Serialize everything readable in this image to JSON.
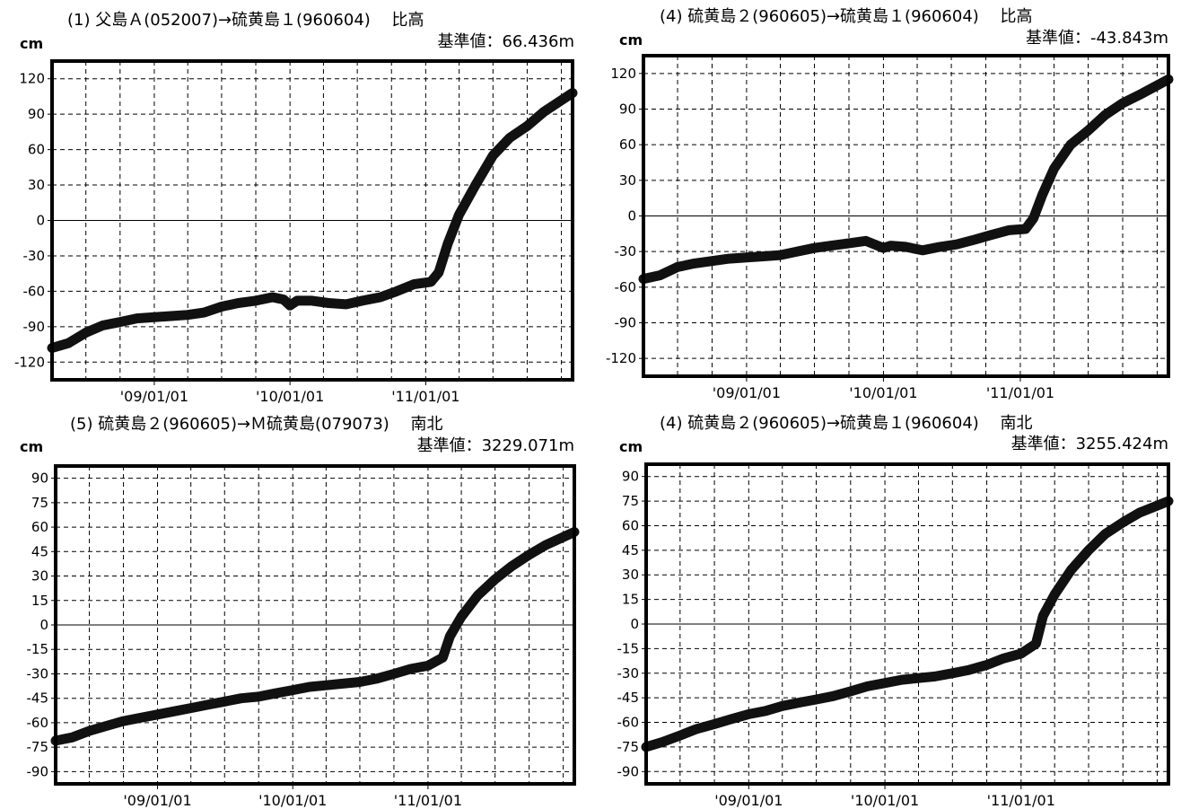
{
  "chart_data": [
    {
      "type": "line",
      "title": "(1) 父島Ａ(052007)→硫黄島１(960604)　 比高",
      "reference": "基準値：66.436m",
      "unit": "cm",
      "ylim": [
        -135,
        135
      ],
      "yticks": [
        -120,
        -90,
        -60,
        -30,
        0,
        30,
        60,
        90,
        120
      ],
      "xlim": [
        "2008-04-01",
        "2012-01-31"
      ],
      "xticks": [
        {
          "date": "2009-01-01",
          "label": "'09/01/01"
        },
        {
          "date": "2010-01-01",
          "label": "'10/01/01"
        },
        {
          "date": "2011-01-01",
          "label": "'11/01/01"
        }
      ],
      "grid": true,
      "series": [
        {
          "points": [
            [
              "2008-04-01",
              -108
            ],
            [
              "2008-05-15",
              -104
            ],
            [
              "2008-07-01",
              -95
            ],
            [
              "2008-08-15",
              -89
            ],
            [
              "2008-10-01",
              -86
            ],
            [
              "2008-11-15",
              -83
            ],
            [
              "2009-01-01",
              -82
            ],
            [
              "2009-02-15",
              -81
            ],
            [
              "2009-04-01",
              -80
            ],
            [
              "2009-05-15",
              -78
            ],
            [
              "2009-07-01",
              -73
            ],
            [
              "2009-08-15",
              -70
            ],
            [
              "2009-10-01",
              -68
            ],
            [
              "2009-11-15",
              -65
            ],
            [
              "2009-12-15",
              -67
            ],
            [
              "2010-01-01",
              -72
            ],
            [
              "2010-01-20",
              -68
            ],
            [
              "2010-03-01",
              -68
            ],
            [
              "2010-04-15",
              -70
            ],
            [
              "2010-06-01",
              -71
            ],
            [
              "2010-07-15",
              -68
            ],
            [
              "2010-09-01",
              -65
            ],
            [
              "2010-10-15",
              -60
            ],
            [
              "2010-12-01",
              -54
            ],
            [
              "2011-01-15",
              -52
            ],
            [
              "2011-02-05",
              -44
            ],
            [
              "2011-03-01",
              -20
            ],
            [
              "2011-04-01",
              5
            ],
            [
              "2011-05-15",
              30
            ],
            [
              "2011-07-01",
              55
            ],
            [
              "2011-08-15",
              70
            ],
            [
              "2011-10-01",
              80
            ],
            [
              "2011-11-15",
              92
            ],
            [
              "2012-01-31",
              108
            ]
          ]
        }
      ]
    },
    {
      "type": "line",
      "title": "(4) 硫黄島２(960605)→硫黄島１(960604)　 比高",
      "reference": "基準値：-43.843m",
      "unit": "cm",
      "ylim": [
        -135,
        135
      ],
      "yticks": [
        -120,
        -90,
        -60,
        -30,
        0,
        30,
        60,
        90,
        120
      ],
      "xlim": [
        "2008-04-01",
        "2012-01-31"
      ],
      "xticks": [
        {
          "date": "2009-01-01",
          "label": "'09/01/01"
        },
        {
          "date": "2010-01-01",
          "label": "'10/01/01"
        },
        {
          "date": "2011-01-01",
          "label": "'11/01/01"
        }
      ],
      "grid": true,
      "series": [
        {
          "points": [
            [
              "2008-04-01",
              -53
            ],
            [
              "2008-05-15",
              -50
            ],
            [
              "2008-07-01",
              -43
            ],
            [
              "2008-08-15",
              -40
            ],
            [
              "2008-10-01",
              -38
            ],
            [
              "2008-11-15",
              -36
            ],
            [
              "2009-01-01",
              -35
            ],
            [
              "2009-02-15",
              -34
            ],
            [
              "2009-04-01",
              -33
            ],
            [
              "2009-05-15",
              -30
            ],
            [
              "2009-07-01",
              -27
            ],
            [
              "2009-08-15",
              -25
            ],
            [
              "2009-10-01",
              -23
            ],
            [
              "2009-11-15",
              -21
            ],
            [
              "2010-01-01",
              -27
            ],
            [
              "2010-01-20",
              -25
            ],
            [
              "2010-03-01",
              -26
            ],
            [
              "2010-04-15",
              -29
            ],
            [
              "2010-06-01",
              -26
            ],
            [
              "2010-07-15",
              -24
            ],
            [
              "2010-09-01",
              -20
            ],
            [
              "2010-10-15",
              -16
            ],
            [
              "2010-12-01",
              -12
            ],
            [
              "2011-01-15",
              -11
            ],
            [
              "2011-02-05",
              -2
            ],
            [
              "2011-03-01",
              18
            ],
            [
              "2011-04-01",
              40
            ],
            [
              "2011-05-15",
              60
            ],
            [
              "2011-07-01",
              72
            ],
            [
              "2011-08-15",
              85
            ],
            [
              "2011-10-01",
              95
            ],
            [
              "2011-11-15",
              102
            ],
            [
              "2012-01-31",
              115
            ]
          ]
        }
      ]
    },
    {
      "type": "line",
      "title": "(5) 硫黄島２(960605)→Ｍ硫黄島(079073)　 南北",
      "reference": "基準値：3229.071m",
      "unit": "cm",
      "ylim": [
        -97.5,
        97.5
      ],
      "yticks": [
        -90,
        -75,
        -60,
        -45,
        -30,
        -15,
        0,
        15,
        30,
        45,
        60,
        75,
        90
      ],
      "xlim": [
        "2008-04-01",
        "2012-01-31"
      ],
      "xticks": [
        {
          "date": "2009-01-01",
          "label": "'09/01/01"
        },
        {
          "date": "2010-01-01",
          "label": "'10/01/01"
        },
        {
          "date": "2011-01-01",
          "label": "'11/01/01"
        }
      ],
      "grid": true,
      "series": [
        {
          "points": [
            [
              "2008-04-01",
              -71
            ],
            [
              "2008-05-15",
              -69
            ],
            [
              "2008-07-01",
              -65
            ],
            [
              "2008-08-15",
              -62
            ],
            [
              "2008-10-01",
              -59
            ],
            [
              "2008-11-15",
              -57
            ],
            [
              "2009-01-01",
              -55
            ],
            [
              "2009-02-15",
              -53
            ],
            [
              "2009-04-01",
              -51
            ],
            [
              "2009-05-15",
              -49
            ],
            [
              "2009-07-01",
              -47
            ],
            [
              "2009-08-15",
              -45
            ],
            [
              "2009-10-01",
              -44
            ],
            [
              "2009-11-15",
              -42
            ],
            [
              "2010-01-01",
              -40
            ],
            [
              "2010-02-15",
              -38
            ],
            [
              "2010-04-01",
              -37
            ],
            [
              "2010-05-15",
              -36
            ],
            [
              "2010-07-01",
              -35
            ],
            [
              "2010-08-15",
              -33
            ],
            [
              "2010-10-01",
              -30
            ],
            [
              "2010-11-15",
              -27
            ],
            [
              "2011-01-01",
              -25
            ],
            [
              "2011-02-10",
              -20
            ],
            [
              "2011-03-01",
              -7
            ],
            [
              "2011-04-01",
              5
            ],
            [
              "2011-05-15",
              18
            ],
            [
              "2011-07-01",
              28
            ],
            [
              "2011-08-15",
              36
            ],
            [
              "2011-10-01",
              43
            ],
            [
              "2011-11-15",
              49
            ],
            [
              "2012-01-31",
              57
            ]
          ]
        }
      ]
    },
    {
      "type": "line",
      "title": "(4) 硫黄島２(960605)→硫黄島１(960604)　 南北",
      "reference": "基準値：3255.424m",
      "unit": "cm",
      "ylim": [
        -97.5,
        97.5
      ],
      "yticks": [
        -90,
        -75,
        -60,
        -45,
        -30,
        -15,
        0,
        15,
        30,
        45,
        60,
        75,
        90
      ],
      "xlim": [
        "2008-04-01",
        "2012-01-31"
      ],
      "xticks": [
        {
          "date": "2009-01-01",
          "label": "'09/01/01"
        },
        {
          "date": "2010-01-01",
          "label": "'10/01/01"
        },
        {
          "date": "2011-01-01",
          "label": "'11/01/01"
        }
      ],
      "grid": true,
      "series": [
        {
          "points": [
            [
              "2008-04-01",
              -75
            ],
            [
              "2008-05-15",
              -72
            ],
            [
              "2008-07-01",
              -68
            ],
            [
              "2008-08-15",
              -64
            ],
            [
              "2008-10-01",
              -61
            ],
            [
              "2008-11-15",
              -58
            ],
            [
              "2009-01-01",
              -55
            ],
            [
              "2009-02-15",
              -53
            ],
            [
              "2009-04-01",
              -50
            ],
            [
              "2009-05-15",
              -48
            ],
            [
              "2009-07-01",
              -46
            ],
            [
              "2009-08-15",
              -44
            ],
            [
              "2009-10-01",
              -41
            ],
            [
              "2009-11-15",
              -38
            ],
            [
              "2010-01-01",
              -36
            ],
            [
              "2010-02-15",
              -34
            ],
            [
              "2010-04-01",
              -33
            ],
            [
              "2010-05-15",
              -32
            ],
            [
              "2010-07-01",
              -30
            ],
            [
              "2010-08-15",
              -28
            ],
            [
              "2010-10-01",
              -25
            ],
            [
              "2010-11-15",
              -21
            ],
            [
              "2011-01-01",
              -18
            ],
            [
              "2011-02-10",
              -12
            ],
            [
              "2011-03-01",
              5
            ],
            [
              "2011-04-01",
              18
            ],
            [
              "2011-05-15",
              33
            ],
            [
              "2011-07-01",
              45
            ],
            [
              "2011-08-15",
              55
            ],
            [
              "2011-10-01",
              62
            ],
            [
              "2011-11-15",
              68
            ],
            [
              "2012-01-31",
              75
            ]
          ]
        }
      ]
    }
  ]
}
